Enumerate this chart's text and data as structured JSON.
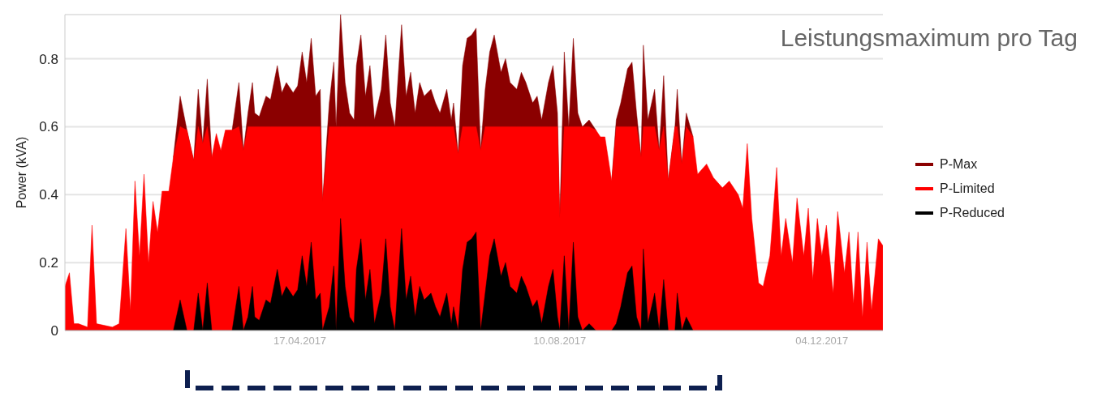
{
  "chart_data": {
    "type": "area",
    "title": "Leistungsmaximum pro Tag",
    "ylabel": "Power (kVA)",
    "x": [
      "2017-01-03",
      "2017-01-05",
      "2017-01-07",
      "2017-01-09",
      "2017-01-13",
      "2017-01-15",
      "2017-01-17",
      "2017-01-24",
      "2017-01-27",
      "2017-01-30",
      "2017-02-01",
      "2017-02-03",
      "2017-02-05",
      "2017-02-07",
      "2017-02-09",
      "2017-02-11",
      "2017-02-13",
      "2017-02-15",
      "2017-02-18",
      "2017-02-20",
      "2017-02-23",
      "2017-02-26",
      "2017-03-01",
      "2017-03-03",
      "2017-03-05",
      "2017-03-07",
      "2017-03-09",
      "2017-03-11",
      "2017-03-13",
      "2017-03-15",
      "2017-03-18",
      "2017-03-21",
      "2017-03-23",
      "2017-03-25",
      "2017-03-27",
      "2017-03-28",
      "2017-03-30",
      "2017-04-02",
      "2017-04-04",
      "2017-04-07",
      "2017-04-09",
      "2017-04-11",
      "2017-04-14",
      "2017-04-16",
      "2017-04-18",
      "2017-04-20",
      "2017-04-22",
      "2017-04-24",
      "2017-04-26",
      "2017-04-27",
      "2017-04-30",
      "2017-05-02",
      "2017-05-03",
      "2017-05-05",
      "2017-05-07",
      "2017-05-09",
      "2017-05-11",
      "2017-05-12",
      "2017-05-14",
      "2017-05-16",
      "2017-05-18",
      "2017-05-20",
      "2017-05-23",
      "2017-05-25",
      "2017-05-27",
      "2017-05-29",
      "2017-06-01",
      "2017-06-03",
      "2017-06-05",
      "2017-06-07",
      "2017-06-09",
      "2017-06-11",
      "2017-06-14",
      "2017-06-16",
      "2017-06-18",
      "2017-06-21",
      "2017-06-23",
      "2017-06-24",
      "2017-06-26",
      "2017-06-28",
      "2017-06-30",
      "2017-07-02",
      "2017-07-04",
      "2017-07-06",
      "2017-07-08",
      "2017-07-10",
      "2017-07-12",
      "2017-07-15",
      "2017-07-17",
      "2017-07-19",
      "2017-07-22",
      "2017-07-24",
      "2017-07-26",
      "2017-07-29",
      "2017-07-31",
      "2017-08-02",
      "2017-08-05",
      "2017-08-07",
      "2017-08-09",
      "2017-08-10",
      "2017-08-12",
      "2017-08-14",
      "2017-08-16",
      "2017-08-18",
      "2017-08-20",
      "2017-08-23",
      "2017-08-26",
      "2017-08-28",
      "2017-08-30",
      "2017-09-02",
      "2017-09-04",
      "2017-09-06",
      "2017-09-09",
      "2017-09-11",
      "2017-09-13",
      "2017-09-15",
      "2017-09-16",
      "2017-09-18",
      "2017-09-21",
      "2017-09-23",
      "2017-09-25",
      "2017-09-27",
      "2017-09-30",
      "2017-10-01",
      "2017-10-03",
      "2017-10-05",
      "2017-10-08",
      "2017-10-10",
      "2017-10-14",
      "2017-10-17",
      "2017-10-21",
      "2017-10-24",
      "2017-10-28",
      "2017-10-30",
      "2017-11-01",
      "2017-11-03",
      "2017-11-06",
      "2017-11-08",
      "2017-11-11",
      "2017-11-14",
      "2017-11-16",
      "2017-11-18",
      "2017-11-21",
      "2017-11-23",
      "2017-11-26",
      "2017-11-28",
      "2017-11-30",
      "2017-12-02",
      "2017-12-04",
      "2017-12-06",
      "2017-12-09",
      "2017-12-11",
      "2017-12-14",
      "2017-12-16",
      "2017-12-18",
      "2017-12-20",
      "2017-12-22",
      "2017-12-24",
      "2017-12-26",
      "2017-12-29",
      "2017-12-31"
    ],
    "series": [
      {
        "name": "P-Max",
        "color": "#8b0000",
        "values": [
          null,
          null,
          null,
          null,
          null,
          null,
          null,
          null,
          null,
          null,
          null,
          null,
          null,
          null,
          null,
          null,
          null,
          null,
          null,
          0.51,
          0.69,
          0.59,
          0.5,
          0.71,
          0.55,
          0.74,
          0.51,
          null,
          null,
          null,
          0.59,
          0.73,
          0.53,
          0.64,
          0.73,
          0.64,
          0.63,
          0.69,
          0.68,
          0.78,
          0.7,
          0.73,
          0.7,
          0.72,
          0.82,
          0.73,
          0.86,
          0.69,
          0.71,
          0.38,
          0.67,
          0.79,
          0.6,
          0.93,
          0.73,
          0.64,
          0.62,
          0.78,
          0.87,
          0.69,
          0.78,
          0.62,
          0.71,
          0.87,
          0.67,
          0.6,
          0.9,
          0.69,
          0.76,
          0.64,
          0.73,
          0.69,
          0.71,
          0.67,
          0.64,
          0.71,
          0.62,
          0.67,
          0.52,
          0.78,
          0.86,
          0.87,
          0.89,
          0.53,
          0.71,
          0.82,
          0.87,
          0.76,
          0.8,
          0.73,
          0.71,
          0.76,
          0.73,
          0.67,
          0.69,
          0.62,
          0.73,
          0.78,
          0.64,
          0.33,
          0.82,
          0.6,
          0.86,
          0.64,
          0.6,
          0.62,
          0.59,
          null,
          null,
          0.44,
          0.62,
          0.67,
          0.77,
          0.79,
          0.64,
          0.51,
          0.84,
          0.62,
          0.71,
          0.53,
          0.75,
          0.44,
          0.6,
          0.71,
          0.49,
          0.64,
          0.57,
          null,
          null,
          null,
          null,
          null,
          null,
          null,
          null,
          null,
          null,
          null,
          null,
          null,
          null,
          null,
          null,
          null,
          null,
          null,
          null,
          null,
          null,
          null,
          null,
          null,
          null,
          null,
          null,
          null,
          null,
          null,
          null,
          null,
          null
        ]
      },
      {
        "name": "P-Limited",
        "color": "#ff0000",
        "values": [
          0.13,
          0.17,
          0.02,
          0.02,
          0.01,
          0.31,
          0.02,
          0.01,
          0.02,
          0.3,
          0.06,
          0.44,
          0.22,
          0.46,
          0.2,
          0.38,
          0.29,
          0.41,
          0.41,
          0.51,
          0.6,
          0.59,
          0.5,
          0.6,
          0.55,
          0.6,
          0.51,
          0.58,
          0.53,
          0.59,
          0.59,
          0.6,
          0.53,
          0.6,
          0.6,
          0.6,
          0.6,
          0.6,
          0.6,
          0.6,
          0.6,
          0.6,
          0.6,
          0.6,
          0.6,
          0.6,
          0.6,
          0.6,
          0.6,
          0.38,
          0.6,
          0.6,
          0.6,
          0.6,
          0.6,
          0.6,
          0.6,
          0.6,
          0.6,
          0.6,
          0.6,
          0.6,
          0.6,
          0.6,
          0.6,
          0.6,
          0.6,
          0.6,
          0.6,
          0.6,
          0.6,
          0.6,
          0.6,
          0.6,
          0.6,
          0.6,
          0.6,
          0.6,
          0.52,
          0.6,
          0.6,
          0.6,
          0.6,
          0.53,
          0.6,
          0.6,
          0.6,
          0.6,
          0.6,
          0.6,
          0.6,
          0.6,
          0.6,
          0.6,
          0.6,
          0.6,
          0.6,
          0.6,
          0.6,
          0.33,
          0.6,
          0.6,
          0.6,
          0.6,
          0.6,
          0.6,
          0.59,
          0.57,
          0.57,
          0.44,
          0.6,
          0.6,
          0.6,
          0.6,
          0.6,
          0.51,
          0.6,
          0.6,
          0.6,
          0.53,
          0.6,
          0.44,
          0.6,
          0.6,
          0.49,
          0.6,
          0.57,
          0.46,
          0.49,
          0.45,
          0.42,
          0.44,
          0.4,
          0.36,
          0.55,
          0.33,
          0.14,
          0.13,
          0.22,
          0.48,
          0.22,
          0.33,
          0.2,
          0.39,
          0.22,
          0.36,
          0.15,
          0.33,
          0.22,
          0.31,
          0.11,
          0.35,
          0.17,
          0.29,
          0.08,
          0.29,
          0.04,
          0.26,
          0.06,
          0.27,
          0.25
        ]
      },
      {
        "name": "P-Reduced",
        "color": "#000000",
        "values": [
          0,
          0,
          0,
          0,
          0,
          0,
          0,
          0,
          0,
          0,
          0,
          0,
          0,
          0,
          0,
          0,
          0,
          0,
          0,
          0,
          0.09,
          0,
          0,
          0.11,
          0,
          0.14,
          0,
          0,
          0,
          0,
          0,
          0.13,
          0,
          0.04,
          0.13,
          0.04,
          0.03,
          0.09,
          0.08,
          0.18,
          0.1,
          0.13,
          0.1,
          0.12,
          0.22,
          0.13,
          0.26,
          0.09,
          0.11,
          0,
          0.07,
          0.19,
          0,
          0.33,
          0.13,
          0.04,
          0.02,
          0.18,
          0.27,
          0.09,
          0.18,
          0.02,
          0.11,
          0.27,
          0.07,
          0,
          0.3,
          0.09,
          0.16,
          0.04,
          0.13,
          0.09,
          0.11,
          0.07,
          0.04,
          0.11,
          0.02,
          0.07,
          0,
          0.18,
          0.26,
          0.27,
          0.29,
          0,
          0.11,
          0.22,
          0.27,
          0.16,
          0.2,
          0.13,
          0.11,
          0.16,
          0.13,
          0.07,
          0.09,
          0.02,
          0.13,
          0.18,
          0.04,
          0,
          0.22,
          0,
          0.26,
          0.04,
          0,
          0.02,
          0,
          0,
          0,
          0,
          0.02,
          0.07,
          0.17,
          0.19,
          0.04,
          0,
          0.24,
          0.02,
          0.11,
          0,
          0.15,
          0,
          0,
          0.11,
          0,
          0.04,
          0,
          0,
          0,
          0,
          0,
          0,
          0,
          0,
          0,
          0,
          0,
          0,
          0,
          0,
          0,
          0,
          0,
          0,
          0,
          0,
          0,
          0,
          0,
          0,
          0,
          0,
          0,
          0,
          0,
          0,
          0,
          0,
          0,
          0,
          0
        ]
      }
    ],
    "xlim": [
      "2017-01-03",
      "2017-12-31"
    ],
    "xticks": [
      {
        "value": "2017-04-17",
        "label": "17.04.2017"
      },
      {
        "value": "2017-08-10",
        "label": "10.08.2017"
      },
      {
        "value": "2017-12-04",
        "label": "04.12.2017"
      }
    ],
    "ylim": [
      0,
      0.93
    ],
    "yticks": [
      0,
      0.2,
      0.4,
      0.6,
      0.8
    ],
    "grid": "y",
    "legend": "right"
  }
}
